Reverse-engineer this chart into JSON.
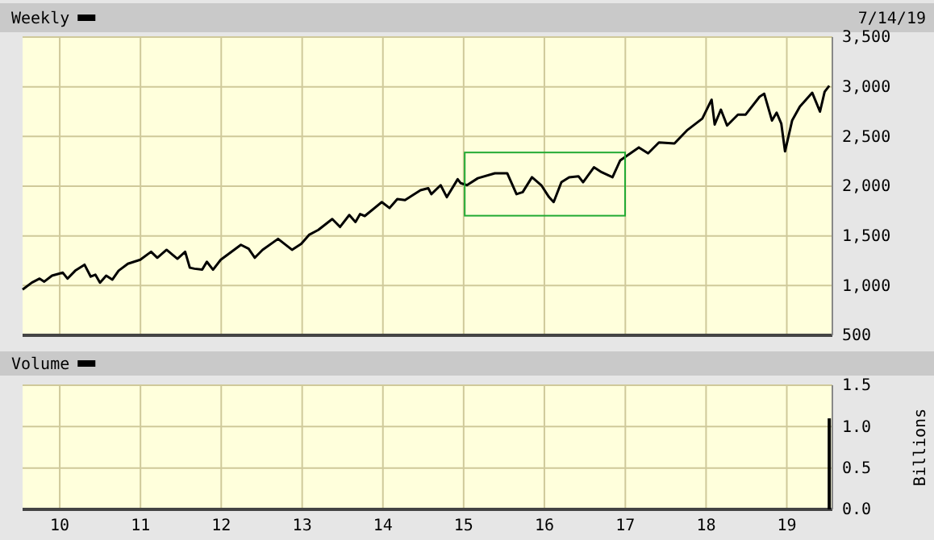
{
  "chart_data": [
    {
      "type": "line",
      "annotations": [
        "7/14/19"
      ],
      "legend": "top left",
      "grid": true,
      "tick_labels": "y",
      "line_style": "solid",
      "marker": "none",
      "x": [
        "2009-07-17",
        "2009-08-28",
        "2009-10-02",
        "2009-10-23",
        "2009-11-27",
        "2010-01-15",
        "2010-02-05",
        "2010-03-12",
        "2010-04-23",
        "2010-05-21",
        "2010-06-11",
        "2010-07-02",
        "2010-07-30",
        "2010-08-27",
        "2010-09-24",
        "2010-11-05",
        "2010-12-31",
        "2011-02-18",
        "2011-03-18",
        "2011-04-29",
        "2011-06-17",
        "2011-07-22",
        "2011-08-12",
        "2011-09-02",
        "2011-10-07",
        "2011-10-28",
        "2011-11-25",
        "2011-12-30",
        "2012-03-30",
        "2012-05-04",
        "2012-06-01",
        "2012-07-06",
        "2012-09-14",
        "2012-11-16",
        "2012-12-28",
        "2013-02-01",
        "2013-03-15",
        "2013-05-17",
        "2013-06-21",
        "2013-08-02",
        "2013-08-30",
        "2013-09-20",
        "2013-10-11",
        "2013-12-27",
        "2014-01-31",
        "2014-03-07",
        "2014-04-11",
        "2014-06-20",
        "2014-07-25",
        "2014-08-08",
        "2014-09-19",
        "2014-10-17",
        "2014-12-05",
        "2014-12-19",
        "2015-01-16",
        "2015-03-06",
        "2015-05-22",
        "2015-07-17",
        "2015-08-28",
        "2015-09-25",
        "2015-11-06",
        "2015-12-18",
        "2016-01-22",
        "2016-02-12",
        "2016-03-18",
        "2016-04-22",
        "2016-06-03",
        "2016-06-24",
        "2016-08-12",
        "2016-09-16",
        "2016-11-04",
        "2016-12-09",
        "2017-03-03",
        "2017-04-14",
        "2017-06-02",
        "2017-08-11",
        "2017-10-06",
        "2017-12-15",
        "2018-01-26",
        "2018-02-09",
        "2018-03-09",
        "2018-04-06",
        "2018-05-25",
        "2018-06-29",
        "2018-08-31",
        "2018-09-21",
        "2018-10-26",
        "2018-11-16",
        "2018-12-07",
        "2018-12-24",
        "2019-01-25",
        "2019-03-01",
        "2019-04-26",
        "2019-05-31",
        "2019-06-21",
        "2019-07-12"
      ],
      "series": [
        {
          "name": "Weekly",
          "color": "#000000",
          "values": [
            960,
            1030,
            1070,
            1040,
            1100,
            1130,
            1070,
            1150,
            1210,
            1090,
            1110,
            1030,
            1100,
            1060,
            1150,
            1220,
            1260,
            1340,
            1280,
            1360,
            1270,
            1340,
            1180,
            1170,
            1160,
            1240,
            1160,
            1260,
            1410,
            1370,
            1280,
            1360,
            1470,
            1360,
            1420,
            1510,
            1560,
            1670,
            1590,
            1710,
            1640,
            1720,
            1700,
            1840,
            1780,
            1870,
            1860,
            1960,
            1980,
            1920,
            2010,
            1890,
            2070,
            2030,
            2010,
            2080,
            2130,
            2130,
            1920,
            1940,
            2090,
            2010,
            1890,
            1840,
            2040,
            2090,
            2100,
            2040,
            2190,
            2140,
            2090,
            2260,
            2390,
            2330,
            2440,
            2430,
            2560,
            2680,
            2870,
            2620,
            2770,
            2610,
            2720,
            2720,
            2900,
            2930,
            2660,
            2740,
            2630,
            2350,
            2660,
            2800,
            2940,
            2750,
            2950,
            3010
          ]
        }
      ],
      "xlim": [
        "2009-07-17",
        "2019-07-26"
      ],
      "xticks": [
        {
          "value": "2010-01-01",
          "label": null
        },
        {
          "value": "2011-01-01",
          "label": null
        },
        {
          "value": "2012-01-01",
          "label": null
        },
        {
          "value": "2013-01-01",
          "label": null
        },
        {
          "value": "2014-01-01",
          "label": null
        },
        {
          "value": "2015-01-01",
          "label": null
        },
        {
          "value": "2016-01-01",
          "label": null
        },
        {
          "value": "2017-01-01",
          "label": null
        },
        {
          "value": "2018-01-01",
          "label": null
        },
        {
          "value": "2019-01-01",
          "label": null
        }
      ],
      "ylim": [
        500,
        3500
      ],
      "yticks": [
        500,
        {
          "value": 1000,
          "label": "1,000"
        },
        {
          "value": 1500,
          "label": "1,500"
        },
        {
          "value": 2000,
          "label": "2,000"
        },
        {
          "value": 2500,
          "label": "2,500"
        },
        {
          "value": 3000,
          "label": "3,000"
        },
        {
          "value": 3500,
          "label": "3,500"
        }
      ]
    },
    {
      "type": "bar",
      "legend": "top left",
      "grid": true,
      "ylabel": "Billions",
      "x": [
        "2019-07-12"
      ],
      "series": [
        {
          "name": "Volume",
          "color": "#000000",
          "values": [
            1.1
          ]
        }
      ],
      "xlim": [
        "2009-07-17",
        "2019-07-26"
      ],
      "xticks": [
        {
          "value": "2010-01-01",
          "label": "10"
        },
        {
          "value": "2011-01-01",
          "label": "11"
        },
        {
          "value": "2012-01-01",
          "label": "12"
        },
        {
          "value": "2013-01-01",
          "label": "13"
        },
        {
          "value": "2014-01-01",
          "label": "14"
        },
        {
          "value": "2015-01-01",
          "label": "15"
        },
        {
          "value": "2016-01-01",
          "label": "16"
        },
        {
          "value": "2017-01-01",
          "label": "17"
        },
        {
          "value": "2018-01-01",
          "label": "18"
        },
        {
          "value": "2019-01-01",
          "label": "19"
        }
      ],
      "ylim": [
        0,
        1.5
      ],
      "yticks": [
        {
          "value": 0,
          "label": "0.0"
        },
        0.5,
        {
          "value": 1,
          "label": "1.0"
        },
        1.5
      ]
    }
  ]
}
